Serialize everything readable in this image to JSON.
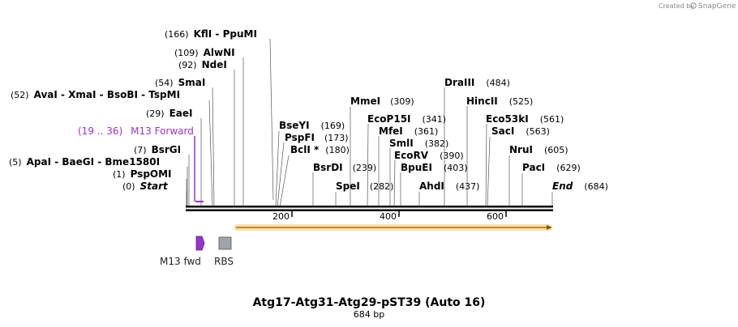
{
  "credit": {
    "prefix": "Created by",
    "brand": "SnapGene"
  },
  "title": "Atg17-Atg31-Atg29-pST39  (Auto 16)",
  "length_label": "684 bp",
  "colors": {
    "backbone": "#000000",
    "primer": "#9933cc",
    "orf_fill": "#f5b942",
    "rbs": "#a0a4a8"
  },
  "axis": {
    "ticks": [
      200,
      400,
      600
    ]
  },
  "sites": [
    {
      "id": "kfli",
      "pos": "(166)",
      "names": "KflI  -  PpuMI"
    },
    {
      "id": "alwni",
      "pos": "(109)",
      "names": "AlwNI"
    },
    {
      "id": "ndei",
      "pos": "(92)",
      "names": "NdeI"
    },
    {
      "id": "smai",
      "pos": "(54)",
      "names": "SmaI"
    },
    {
      "id": "avai",
      "pos": "(52)",
      "names": "AvaI  -  XmaI  -  BsoBI  -  TspMI"
    },
    {
      "id": "eaei",
      "pos": "(29)",
      "names": "EaeI"
    },
    {
      "id": "bsrgi",
      "pos": "(7)",
      "names": "BsrGI"
    },
    {
      "id": "apai",
      "pos": "(5)",
      "names": "ApaI  -  BaeGI  -  Bme1580I"
    },
    {
      "id": "pspomi",
      "pos": "(1)",
      "names": "PspOMI"
    },
    {
      "id": "start",
      "pos": "(0)",
      "names": "Start"
    },
    {
      "id": "bseyi",
      "pos": "(169)",
      "names": "BseYI"
    },
    {
      "id": "pspfi",
      "pos": "(173)",
      "names": "PspFI"
    },
    {
      "id": "bcli",
      "pos": "(180)",
      "names": "BclI *"
    },
    {
      "id": "bsrdi",
      "pos": "(239)",
      "names": "BsrDI"
    },
    {
      "id": "spei",
      "pos": "(282)",
      "names": "SpeI"
    },
    {
      "id": "mmei",
      "pos": "(309)",
      "names": "MmeI"
    },
    {
      "id": "ecop15i",
      "pos": "(341)",
      "names": "EcoP15I"
    },
    {
      "id": "mfei",
      "pos": "(361)",
      "names": "MfeI"
    },
    {
      "id": "smli",
      "pos": "(382)",
      "names": "SmlI"
    },
    {
      "id": "ecorv",
      "pos": "(390)",
      "names": "EcoRV"
    },
    {
      "id": "bpuei",
      "pos": "(403)",
      "names": "BpuEI"
    },
    {
      "id": "ahdi",
      "pos": "(437)",
      "names": "AhdI"
    },
    {
      "id": "draiii",
      "pos": "(484)",
      "names": "DraIII"
    },
    {
      "id": "hincii",
      "pos": "(525)",
      "names": "HincII"
    },
    {
      "id": "eco53ki",
      "pos": "(561)",
      "names": "Eco53kI"
    },
    {
      "id": "saci",
      "pos": "(563)",
      "names": "SacI"
    },
    {
      "id": "nrui",
      "pos": "(605)",
      "names": "NruI"
    },
    {
      "id": "paci",
      "pos": "(629)",
      "names": "PacI"
    },
    {
      "id": "end",
      "pos": "(684)",
      "names": "End"
    }
  ],
  "primer": {
    "range": "(19 .. 36)",
    "name": "M13 Forward"
  },
  "features": [
    {
      "id": "m13fwd",
      "name": "M13 fwd"
    },
    {
      "id": "rbs",
      "name": "RBS"
    }
  ]
}
